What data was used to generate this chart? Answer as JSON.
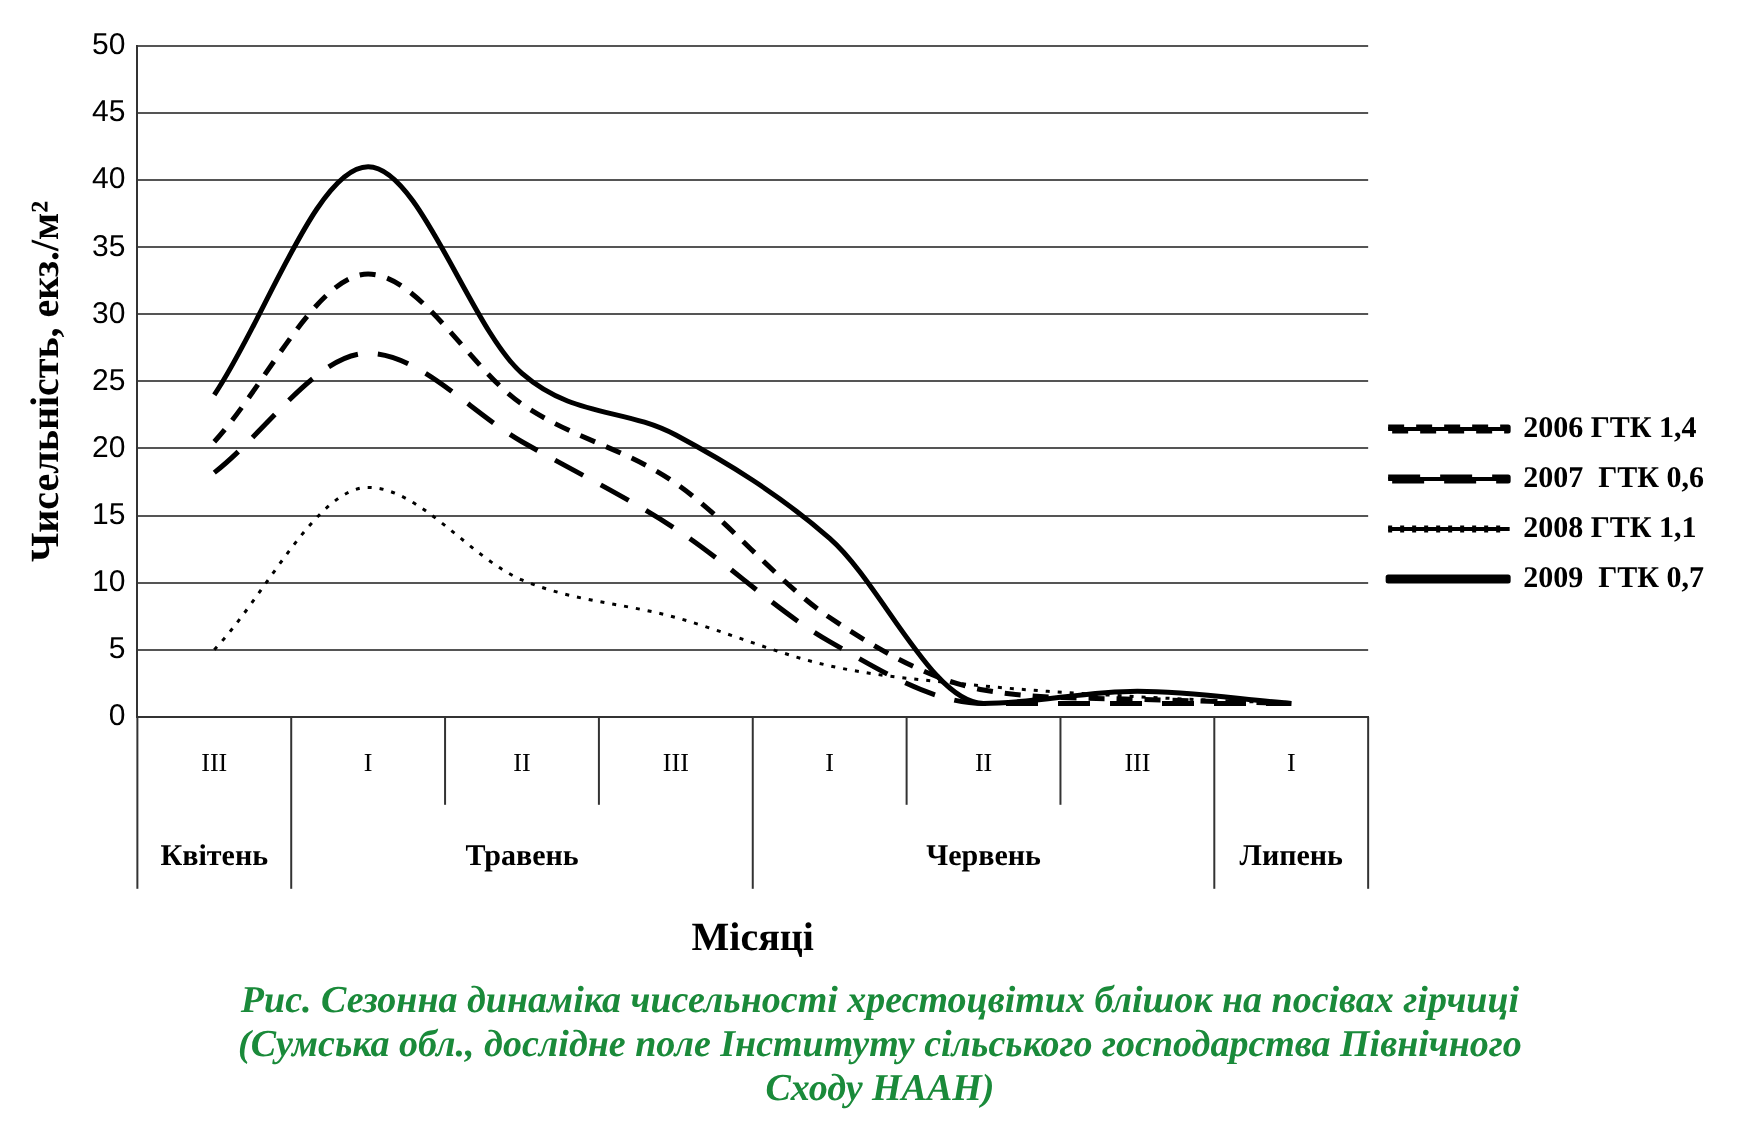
{
  "chart_data": {
    "type": "line",
    "ylabel": "Чисельність, екз./м²",
    "xlabel": "Місяці",
    "categories": [
      "III",
      "I",
      "II",
      "III",
      "I",
      "II",
      "III",
      "I"
    ],
    "series": [
      {
        "name": "2006 ГТК 1,4",
        "color": "#000000",
        "line_style": "dashed",
        "values": [
          20.5,
          33,
          23.3,
          17.4,
          7.4,
          2,
          1.3,
          1
        ]
      },
      {
        "name": "2007  ГТК 0,6",
        "color": "#000000",
        "line_style": "dashed",
        "values": [
          18.2,
          27.1,
          20.5,
          14,
          5.6,
          1,
          1,
          1
        ]
      },
      {
        "name": "2008 ГТК 1,1",
        "color": "#000000",
        "line_style": "dotted",
        "values": [
          5,
          17.1,
          10.2,
          7.4,
          3.8,
          2.3,
          1.5,
          1
        ]
      },
      {
        "name": "2009  ГТК 0,7",
        "color": "#000000",
        "line_style": "solid",
        "values": [
          24,
          41,
          25.6,
          21,
          13.3,
          1,
          1.9,
          1
        ]
      }
    ],
    "ylim": [
      0,
      50
    ],
    "yticks": [
      0,
      5,
      10,
      15,
      20,
      25,
      30,
      35,
      40,
      45,
      50
    ],
    "grid": "y",
    "legend": "right",
    "marker": "none",
    "annotations": [
      "Квітень",
      "Травень",
      "Червень",
      "Липень",
      "Рис. Сезонна динаміка чисельності хрестоцвітих блішок на посівах гірчиці (Сумська обл., дослідне поле Інституту сільського господарства Північного Сходу НААН)"
    ]
  }
}
